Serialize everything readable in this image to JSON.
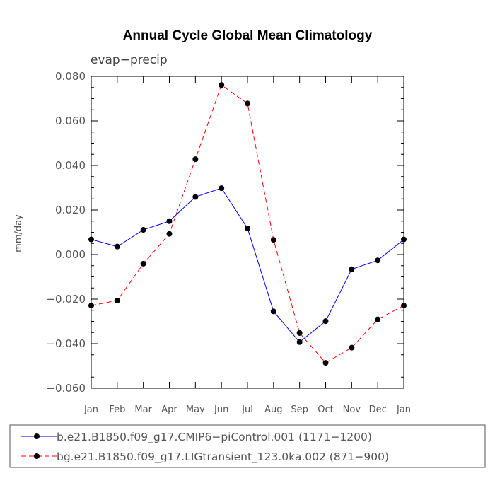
{
  "chart_data": {
    "type": "line",
    "title": "Annual Cycle Global Mean Climatology",
    "subtitle": "evap−precip",
    "xlabel": "",
    "ylabel": "mm/day",
    "categories": [
      "Jan",
      "Feb",
      "Mar",
      "Apr",
      "May",
      "Jun",
      "Jul",
      "Aug",
      "Sep",
      "Oct",
      "Nov",
      "Dec",
      "Jan"
    ],
    "ylim": [
      -0.06,
      0.08
    ],
    "yticks": [
      -0.06,
      -0.04,
      -0.02,
      0.0,
      0.02,
      0.04,
      0.06,
      0.08
    ],
    "ytick_labels": [
      "−0.060",
      "−0.040",
      "−0.020",
      "0.000",
      "0.020",
      "0.040",
      "0.060",
      "0.080"
    ],
    "series": [
      {
        "name": "b.e21.B1850.f09_g17.CMIP6−piControl.001 (1171−1200)",
        "color": "#0000ff",
        "dash": "solid",
        "values": [
          0.0068,
          0.0036,
          0.0111,
          0.015,
          0.0259,
          0.0298,
          0.0118,
          -0.0255,
          -0.0393,
          -0.0299,
          -0.0066,
          -0.0026,
          0.0068
        ]
      },
      {
        "name": "bg.e21.B1850.f09_g17.LIGtransient_123.0ka.002 (871−900)",
        "color": "#ff0000",
        "dash": "dashed",
        "values": [
          -0.0229,
          -0.0206,
          -0.0041,
          0.0093,
          0.0428,
          0.0761,
          0.0678,
          0.0066,
          -0.0352,
          -0.0486,
          -0.0418,
          -0.0291,
          -0.0229
        ]
      }
    ]
  }
}
